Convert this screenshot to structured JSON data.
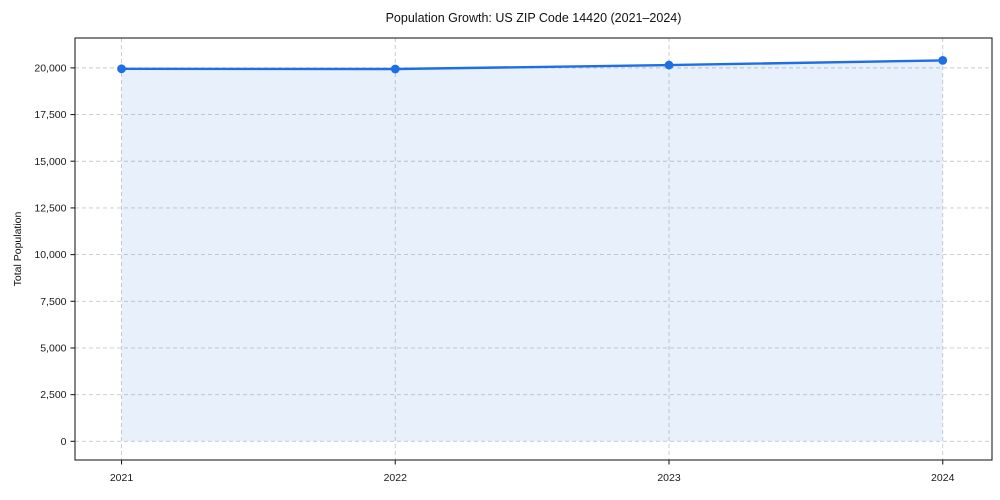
{
  "chart_data": {
    "type": "line",
    "title": "Population Growth: US ZIP Code 14420 (2021–2024)",
    "xlabel": "",
    "ylabel": "Total Population",
    "x": [
      2021,
      2022,
      2023,
      2024
    ],
    "series": [
      {
        "name": "Total Population",
        "values": [
          19950,
          19940,
          20150,
          20400
        ]
      }
    ],
    "xticks": {
      "values": [
        2021,
        2022,
        2023,
        2024
      ],
      "labels": [
        "2021",
        "2022",
        "2023",
        "2024"
      ]
    },
    "yticks": {
      "values": [
        0,
        2500,
        5000,
        7500,
        10000,
        12500,
        15000,
        17500,
        20000
      ],
      "labels": [
        "0",
        "2,500",
        "5,000",
        "7,500",
        "10,000",
        "12,500",
        "15,000",
        "17,500",
        "20,000"
      ]
    },
    "xlim": [
      2020.83,
      2024.18
    ],
    "ylim": [
      -1000,
      21600
    ],
    "grid": true,
    "grid_style": "dashed",
    "legend": "none",
    "area_fill": true,
    "fill_baseline": 0,
    "marker": "circle",
    "colors": {
      "line": "#1e6ee6",
      "fill": "#1e6ee6",
      "fill_opacity": 0.1,
      "grid": "#c9c9c9",
      "spine": "#222222",
      "tick": "#222222",
      "tick_label": "#1a1a1a",
      "title": "#111111",
      "background": "#ffffff"
    }
  }
}
